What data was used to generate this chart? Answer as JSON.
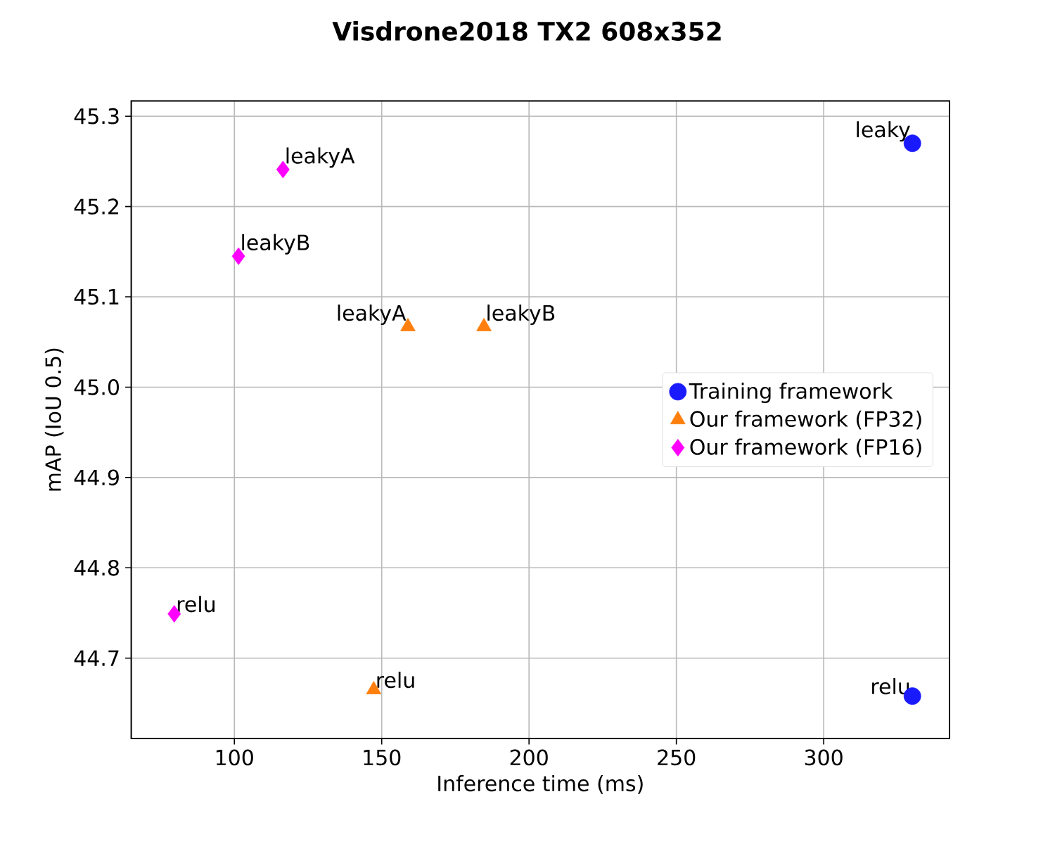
{
  "chart_data": {
    "type": "scatter",
    "title": "Visdrone2018 TX2 608x352",
    "xlabel": "Inference time (ms)",
    "ylabel": "mAP (IoU 0.5)",
    "xlim": [
      65,
      342.7
    ],
    "ylim": [
      44.611,
      45.317
    ],
    "xticks": [
      100,
      150,
      200,
      250,
      300
    ],
    "yticks": [
      {
        "value": 44.7,
        "label": "44.7"
      },
      {
        "value": 44.8,
        "label": "44.8"
      },
      {
        "value": 44.9,
        "label": "44.9"
      },
      {
        "value": 45.0,
        "label": "45.0"
      },
      {
        "value": 45.1,
        "label": "45.1"
      },
      {
        "value": 45.2,
        "label": "45.2"
      },
      {
        "value": 45.3,
        "label": "45.3"
      }
    ],
    "grid": true,
    "legend": "right",
    "series": [
      {
        "name": "Training framework",
        "color": "#1a1aff",
        "marker": "circle",
        "x": [
          330.1,
          330.1
        ],
        "values": [
          45.27,
          44.658
        ]
      },
      {
        "name": "Our framework (FP32)",
        "color": "#ff7f0e",
        "marker": "triangle",
        "x": [
          158.9,
          184.7,
          147.3
        ],
        "values": [
          45.067,
          45.067,
          44.665
        ]
      },
      {
        "name": "Our framework (FP16)",
        "color": "#ff00ff",
        "marker": "diamond",
        "x": [
          116.5,
          101.4,
          79.6
        ],
        "values": [
          45.241,
          45.145,
          44.749
        ]
      }
    ],
    "annotations": [
      {
        "text": "leaky",
        "x": 330.1,
        "y": 45.27
      },
      {
        "text": "relu",
        "x": 330.1,
        "y": 44.658
      },
      {
        "text": "leakyA",
        "x": 158.9,
        "y": 45.067
      },
      {
        "text": "leakyB",
        "x": 184.7,
        "y": 45.067
      },
      {
        "text": "relu",
        "x": 147.3,
        "y": 44.665
      },
      {
        "text": "leakyA",
        "x": 116.5,
        "y": 45.241
      },
      {
        "text": "leakyB",
        "x": 101.4,
        "y": 45.145
      },
      {
        "text": "relu",
        "x": 79.6,
        "y": 44.749
      }
    ]
  }
}
